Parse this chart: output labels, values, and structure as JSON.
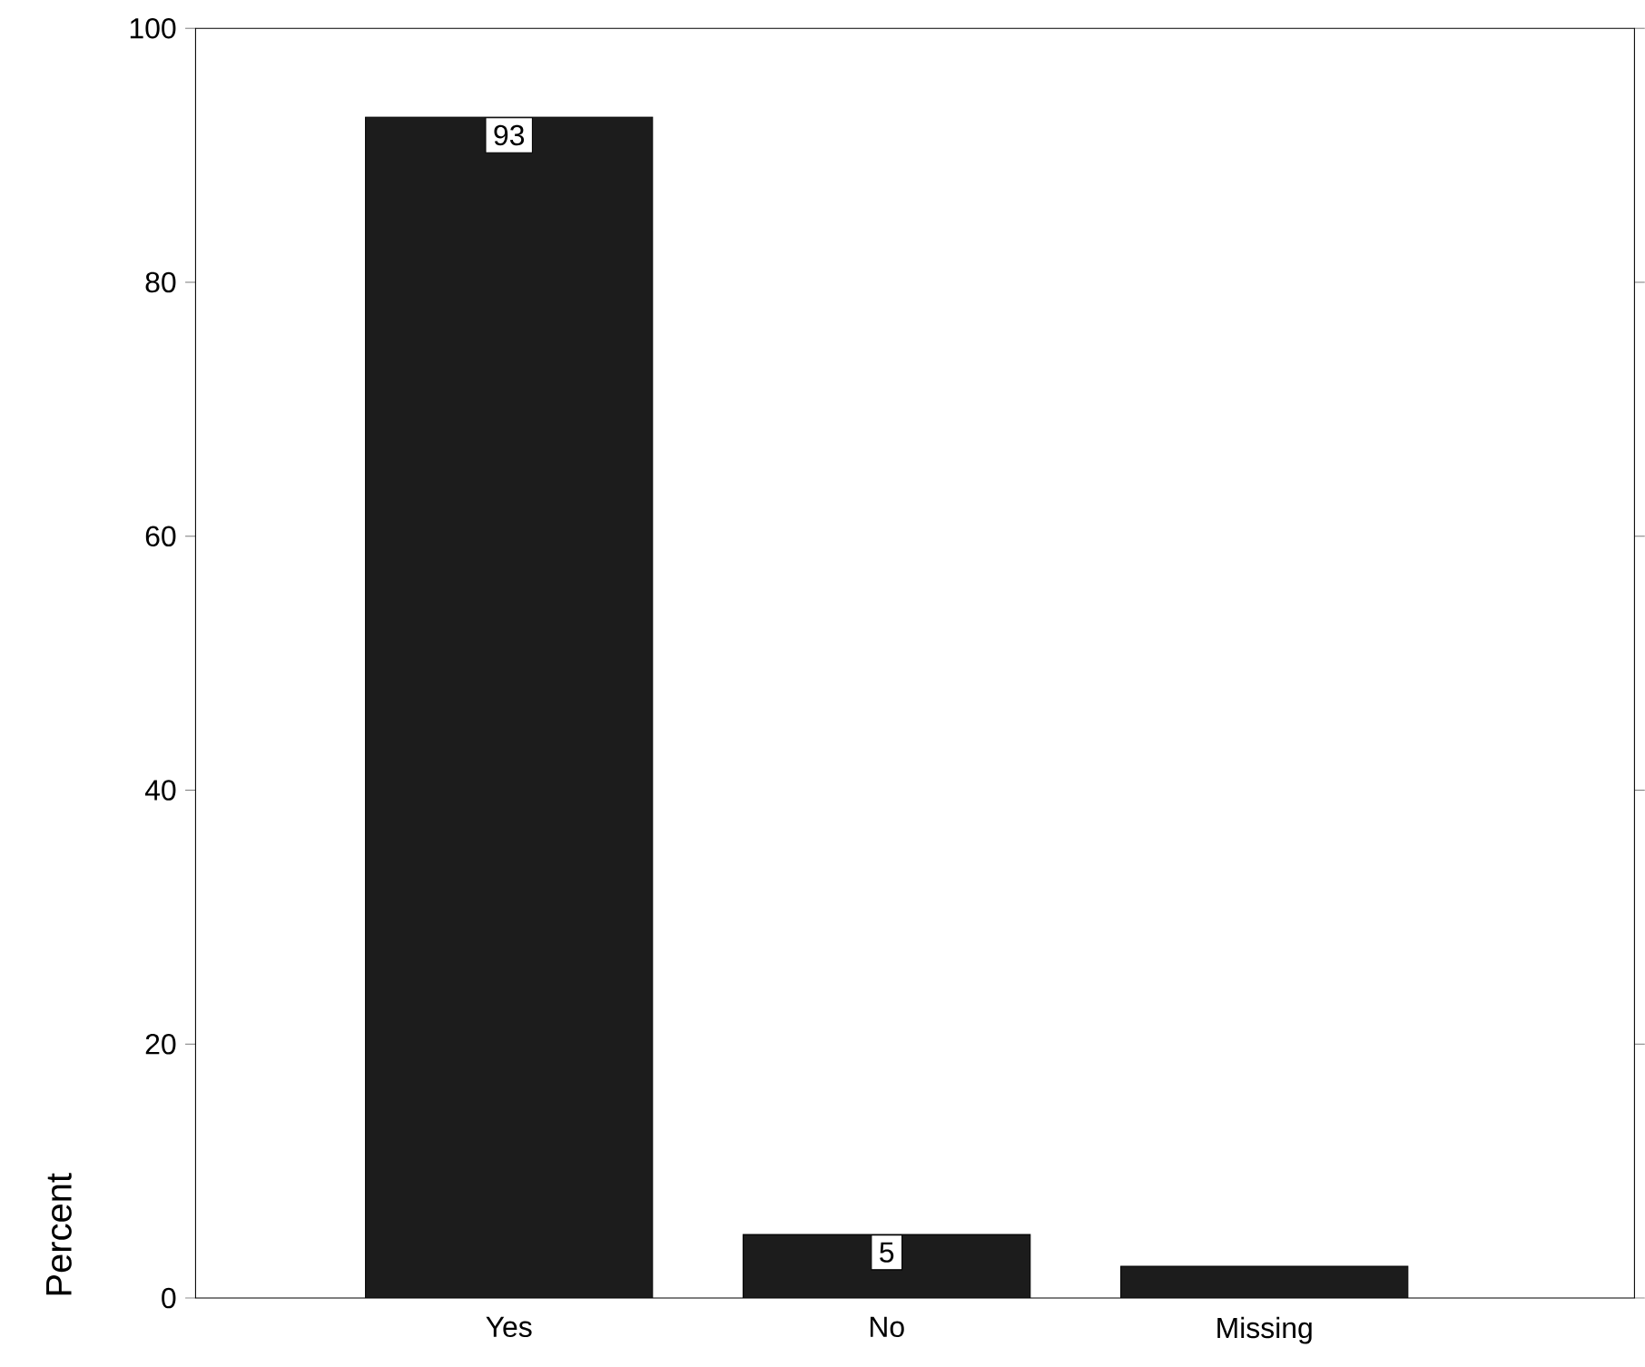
{
  "chart_data": {
    "type": "bar",
    "ylabel": "Percent",
    "categories": [
      "Yes",
      "No",
      "Missing"
    ],
    "values": [
      93,
      5,
      2.5
    ],
    "value_labels": [
      "93",
      "5",
      null
    ],
    "color": "#1c1c1c",
    "ylim": [
      0,
      100
    ],
    "yticks": [
      0,
      20,
      40,
      60,
      80,
      100
    ],
    "grid": false
  }
}
